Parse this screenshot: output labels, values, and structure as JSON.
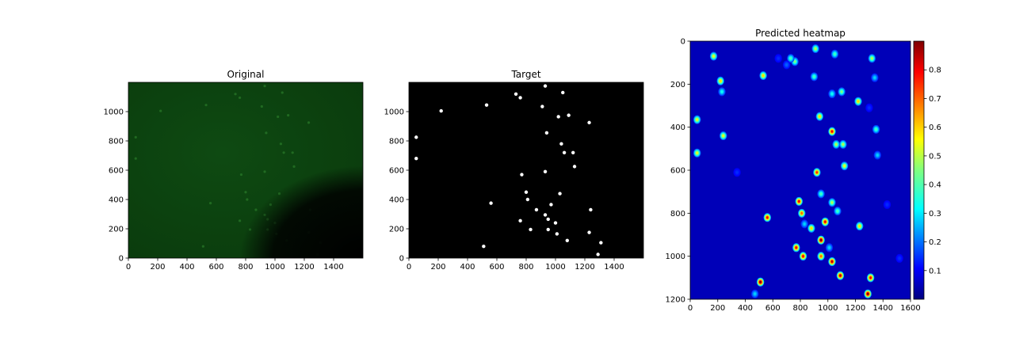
{
  "chart_data": [
    {
      "type": "image",
      "title": "Original",
      "xlim": [
        0,
        1600
      ],
      "ylim": [
        1200,
        0
      ],
      "x_ticks": [
        0,
        200,
        400,
        600,
        800,
        1000,
        1200,
        1400
      ],
      "y_ticks": [
        0,
        200,
        400,
        600,
        800,
        1000
      ],
      "background_color": "#0a3a0a",
      "dark_corner": "bottom-right"
    },
    {
      "type": "scatter",
      "title": "Target",
      "xlim": [
        0,
        1600
      ],
      "ylim": [
        1200,
        0
      ],
      "x_ticks": [
        0,
        200,
        400,
        600,
        800,
        1000,
        1200,
        1400
      ],
      "y_ticks": [
        0,
        200,
        400,
        600,
        800,
        1000
      ],
      "background_color": "#000000",
      "marker_color": "#ffffff",
      "points": [
        [
          1290,
          25
        ],
        [
          510,
          80
        ],
        [
          1310,
          105
        ],
        [
          1080,
          120
        ],
        [
          1230,
          175
        ],
        [
          1010,
          165
        ],
        [
          830,
          195
        ],
        [
          950,
          195
        ],
        [
          1000,
          240
        ],
        [
          760,
          255
        ],
        [
          950,
          265
        ],
        [
          930,
          295
        ],
        [
          870,
          330
        ],
        [
          1240,
          330
        ],
        [
          560,
          375
        ],
        [
          970,
          365
        ],
        [
          810,
          400
        ],
        [
          800,
          450
        ],
        [
          1030,
          440
        ],
        [
          770,
          570
        ],
        [
          930,
          590
        ],
        [
          1130,
          625
        ],
        [
          50,
          680
        ],
        [
          1060,
          720
        ],
        [
          1120,
          720
        ],
        [
          1040,
          780
        ],
        [
          50,
          825
        ],
        [
          940,
          855
        ],
        [
          1230,
          925
        ],
        [
          1020,
          965
        ],
        [
          1090,
          975
        ],
        [
          220,
          1005
        ],
        [
          530,
          1045
        ],
        [
          910,
          1035
        ],
        [
          760,
          1095
        ],
        [
          730,
          1120
        ],
        [
          1050,
          1130
        ],
        [
          930,
          1175
        ]
      ]
    },
    {
      "type": "heatmap",
      "title": "Predicted heatmap",
      "xlim": [
        0,
        1600
      ],
      "ylim": [
        0,
        1200
      ],
      "x_ticks": [
        0,
        200,
        400,
        600,
        800,
        1000,
        1200,
        1400,
        1600
      ],
      "y_ticks": [
        0,
        200,
        400,
        600,
        800,
        1000,
        1200
      ],
      "colorbar_ticks": [
        0.1,
        0.2,
        0.3,
        0.4,
        0.5,
        0.6,
        0.7,
        0.8
      ],
      "colorbar_range": [
        0,
        0.9
      ],
      "colormap": "jet",
      "peaks": [
        [
          1290,
          1175,
          0.9
        ],
        [
          510,
          1120,
          0.9
        ],
        [
          1310,
          1100,
          0.8
        ],
        [
          1090,
          1090,
          0.85
        ],
        [
          1030,
          1025,
          0.85
        ],
        [
          820,
          1000,
          0.8
        ],
        [
          950,
          1000,
          0.7
        ],
        [
          770,
          960,
          0.8
        ],
        [
          1010,
          960,
          0.3
        ],
        [
          950,
          925,
          0.9
        ],
        [
          880,
          870,
          0.6
        ],
        [
          1230,
          860,
          0.6
        ],
        [
          830,
          850,
          0.3
        ],
        [
          980,
          840,
          0.8
        ],
        [
          560,
          820,
          0.8
        ],
        [
          810,
          800,
          0.7
        ],
        [
          1070,
          790,
          0.4
        ],
        [
          1030,
          750,
          0.5
        ],
        [
          790,
          745,
          0.8
        ],
        [
          950,
          710,
          0.4
        ],
        [
          920,
          610,
          0.75
        ],
        [
          1120,
          580,
          0.55
        ],
        [
          50,
          520,
          0.55
        ],
        [
          1060,
          480,
          0.5
        ],
        [
          1110,
          480,
          0.5
        ],
        [
          240,
          440,
          0.55
        ],
        [
          1030,
          420,
          0.8
        ],
        [
          1350,
          410,
          0.4
        ],
        [
          50,
          365,
          0.55
        ],
        [
          940,
          350,
          0.6
        ],
        [
          1220,
          280,
          0.6
        ],
        [
          1030,
          245,
          0.35
        ],
        [
          1100,
          235,
          0.45
        ],
        [
          230,
          235,
          0.35
        ],
        [
          220,
          185,
          0.6
        ],
        [
          530,
          160,
          0.6
        ],
        [
          900,
          165,
          0.4
        ],
        [
          1340,
          170,
          0.3
        ],
        [
          760,
          95,
          0.45
        ],
        [
          730,
          80,
          0.4
        ],
        [
          1320,
          80,
          0.5
        ],
        [
          170,
          70,
          0.55
        ],
        [
          1050,
          60,
          0.4
        ],
        [
          910,
          35,
          0.5
        ],
        [
          470,
          1175,
          0.3
        ],
        [
          1520,
          1010,
          0.15
        ],
        [
          1360,
          530,
          0.3
        ],
        [
          1300,
          310,
          0.15
        ],
        [
          700,
          110,
          0.2
        ],
        [
          640,
          80,
          0.15
        ],
        [
          340,
          610,
          0.15
        ],
        [
          1430,
          760,
          0.15
        ]
      ]
    }
  ]
}
